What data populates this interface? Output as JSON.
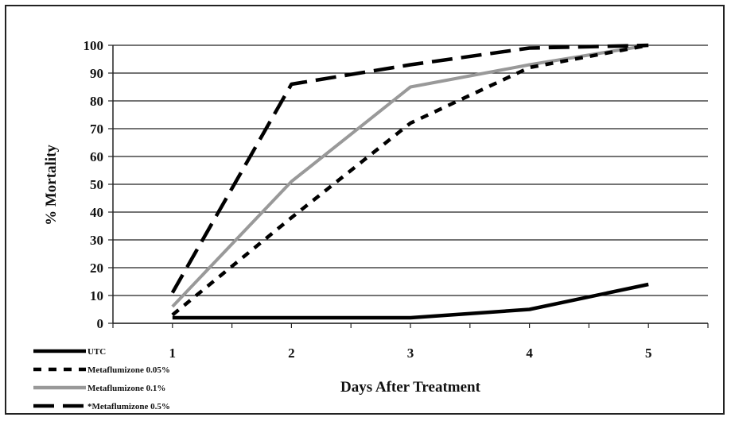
{
  "chart_data": {
    "type": "line",
    "xlabel": "Days After Treatment",
    "ylabel": "% Mortality",
    "x": [
      1,
      2,
      3,
      4,
      5
    ],
    "ylim": [
      0,
      100
    ],
    "yticks": [
      0,
      10,
      20,
      30,
      40,
      50,
      60,
      70,
      80,
      90,
      100
    ],
    "grid": true,
    "legend_position": "bottom-left",
    "series": [
      {
        "name": "UTC",
        "values": [
          2,
          2,
          2,
          5,
          14
        ],
        "color": "#000000",
        "dash": "solid"
      },
      {
        "name": "Metaflumizone 0.05%",
        "values": [
          3,
          38,
          72,
          92,
          100
        ],
        "color": "#000000",
        "dash": "dashed-short"
      },
      {
        "name": "Metaflumizone 0.1%",
        "values": [
          6,
          51,
          85,
          93,
          100
        ],
        "color": "#999999",
        "dash": "solid"
      },
      {
        "name": "*Metaflumizone 0.5%",
        "values": [
          11,
          86,
          93,
          99,
          100
        ],
        "color": "#000000",
        "dash": "dashed-long"
      }
    ]
  }
}
